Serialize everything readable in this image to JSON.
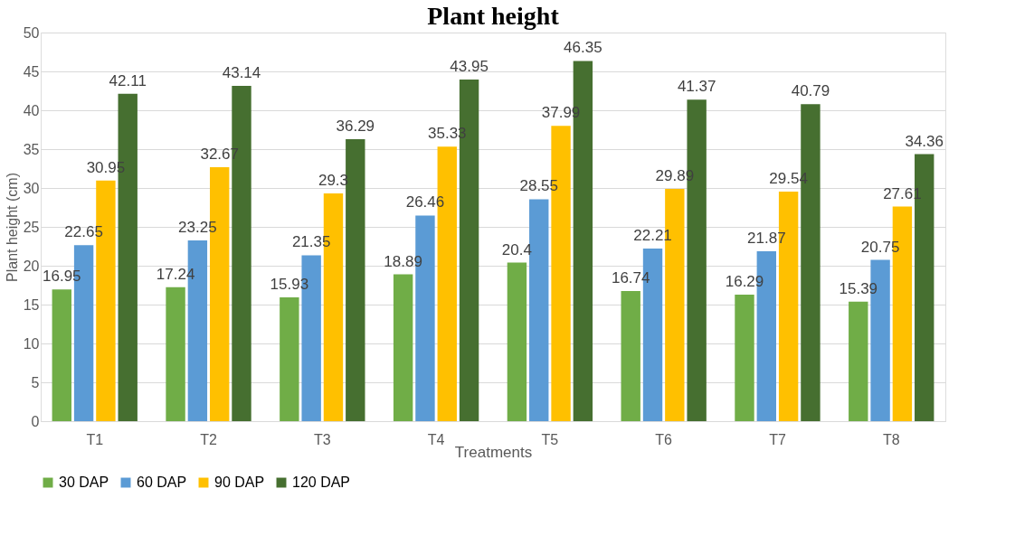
{
  "chart_data": {
    "type": "bar",
    "title": "Plant height",
    "xlabel": "Treatments",
    "ylabel": "Plant height (cm)",
    "categories": [
      "T1",
      "T2",
      "T3",
      "T4",
      "T5",
      "T6",
      "T7",
      "T8"
    ],
    "series": [
      {
        "name": "30 DAP",
        "color": "#70ad47",
        "values": [
          16.95,
          17.24,
          15.93,
          18.89,
          20.4,
          16.74,
          16.29,
          15.39
        ]
      },
      {
        "name": "60 DAP",
        "color": "#5b9bd5",
        "values": [
          22.65,
          23.25,
          21.35,
          26.46,
          28.55,
          22.21,
          21.87,
          20.75
        ]
      },
      {
        "name": "90 DAP",
        "color": "#ffc000",
        "values": [
          30.95,
          32.67,
          29.3,
          35.33,
          37.99,
          29.89,
          29.54,
          27.61
        ]
      },
      {
        "name": "120 DAP",
        "color": "#466f30",
        "values": [
          42.11,
          43.14,
          36.29,
          43.95,
          46.35,
          41.37,
          40.79,
          34.36
        ]
      }
    ],
    "ylim": [
      0,
      50
    ],
    "yticks": [
      0,
      5,
      10,
      15,
      20,
      25,
      30,
      35,
      40,
      45,
      50
    ],
    "grid": "y",
    "legend": "bottom",
    "data_labels": true
  }
}
